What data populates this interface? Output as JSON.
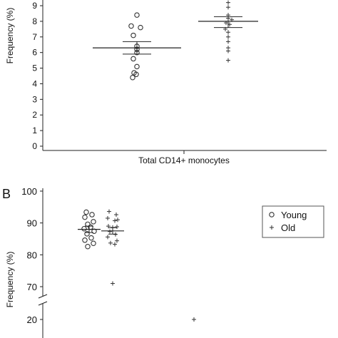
{
  "chart_data": [
    {
      "type": "scatter",
      "panel_label": "",
      "xlabel": "Total CD14+ monocytes",
      "ylabel": "Frequency (%)",
      "ylim": [
        0,
        9
      ],
      "yticks": [
        0,
        1,
        2,
        3,
        4,
        5,
        6,
        7,
        8,
        9
      ],
      "series": [
        {
          "name": "",
          "marker": "circle",
          "values": [
            8.4,
            7.7,
            7.6,
            7.1,
            6.4,
            6.2,
            6.0,
            5.6,
            5.1,
            4.7,
            4.4,
            4.6
          ],
          "mean": 6.3,
          "sem_low": 5.9,
          "sem_high": 6.7
        },
        {
          "name": "",
          "marker": "plus",
          "values": [
            9.2,
            8.9,
            8.4,
            8.2,
            8.1,
            7.9,
            7.8,
            7.5,
            7.3,
            7.0,
            6.7,
            6.3,
            6.1,
            5.5
          ],
          "mean": 8.0,
          "sem_low": 7.6,
          "sem_high": 8.3
        }
      ]
    },
    {
      "type": "scatter",
      "panel_label": "B",
      "xlabel": "",
      "ylabel": "Frequency (%)",
      "yticks": [
        20,
        70,
        80,
        90,
        100
      ],
      "axis_break": [
        20,
        70
      ],
      "legend": {
        "position": "top-right",
        "entries": [
          {
            "label": "Young",
            "marker": "circle"
          },
          {
            "label": "Old",
            "marker": "plus"
          }
        ]
      },
      "series": [
        {
          "name": "Young",
          "marker": "circle",
          "values": [
            93.4,
            92.6,
            91.8,
            90.4,
            89.6,
            88.7,
            88.2,
            87.4,
            86.6,
            85.3,
            84.6,
            83.6,
            82.6
          ],
          "mean": 88.0,
          "sem_low": 87.0,
          "sem_high": 89.0
        },
        {
          "name": "Old",
          "marker": "plus",
          "values": [
            93.6,
            92.6,
            91.5,
            91.0,
            90.7,
            89.0,
            88.8,
            88.6,
            87.3,
            86.4,
            85.6,
            84.4,
            83.7,
            83.3,
            71.0
          ],
          "mean": 87.5,
          "sem_low": 86.5,
          "sem_high": 88.5
        },
        {
          "name": "Old",
          "marker": "plus",
          "values": [
            20.0
          ]
        }
      ]
    }
  ]
}
